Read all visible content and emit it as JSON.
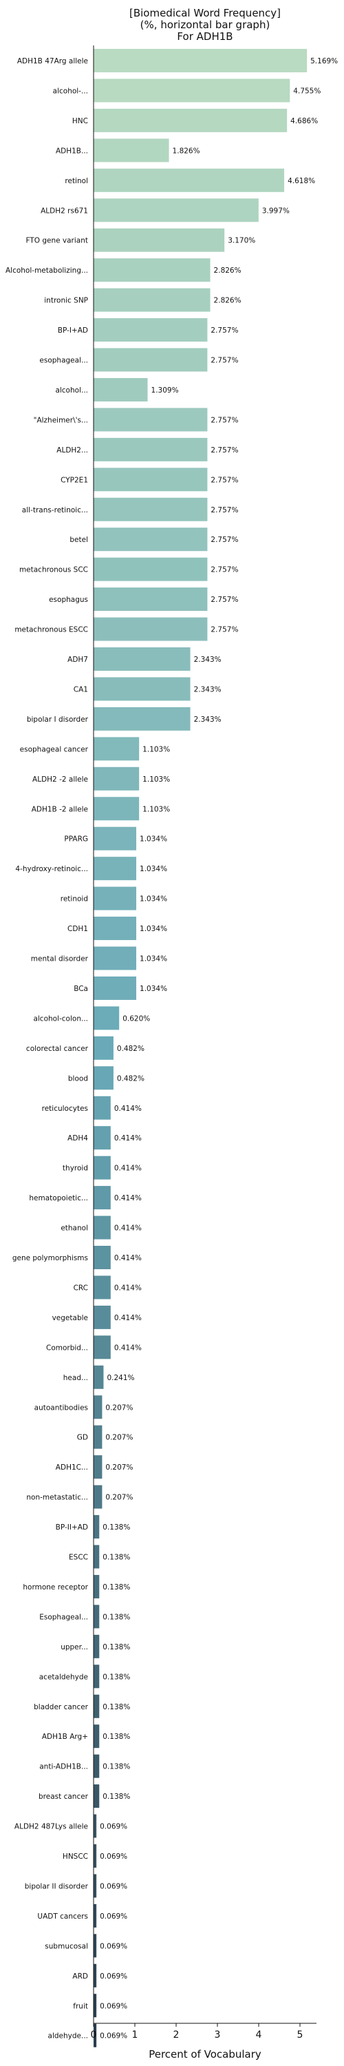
{
  "chart_data": {
    "type": "bar",
    "orientation": "horizontal",
    "title_lines": [
      "[Biomedical Word Frequency]",
      "(%, horizontal bar graph)",
      "For ADH1B"
    ],
    "xlabel": "Percent of Vocabulary",
    "ylabel": "",
    "xlim": [
      0,
      5.4
    ],
    "xticks": [
      0,
      1,
      2,
      3,
      4,
      5
    ],
    "grid": false,
    "legend": "none",
    "colors": {
      "start": "#b9dbc1",
      "mid": "#6aaab8",
      "end": "#2a3d4c"
    },
    "categories": [
      "ADH1B 47Arg allele",
      "alcohol-...",
      "HNC",
      "ADH1B...",
      "retinol",
      "ALDH2 rs671",
      "FTO gene variant",
      "Alcohol-metabolizing...",
      "intronic SNP",
      "BP-I+AD",
      "esophageal...",
      "alcohol...",
      "\"Alzheimer\\'s...",
      "ALDH2...",
      "CYP2E1",
      "all-trans-retinoic...",
      "betel",
      "metachronous SCC",
      "esophagus",
      "metachronous ESCC",
      "ADH7",
      "CA1",
      "bipolar I disorder",
      "esophageal cancer",
      "ALDH2 -2 allele",
      "ADH1B -2 allele",
      "PPARG",
      "4-hydroxy-retinoic...",
      "retinoid",
      "CDH1",
      "mental disorder",
      "BCa",
      "alcohol-colon...",
      "colorectal cancer",
      "blood",
      "reticulocytes",
      "ADH4",
      "thyroid",
      "hematopoietic...",
      "ethanol",
      "gene polymorphisms",
      "CRC",
      "vegetable",
      "Comorbid...",
      "head...",
      "autoantibodies",
      "GD",
      "ADH1C...",
      "non-metastatic...",
      "BP-II+AD",
      "ESCC",
      "hormone receptor",
      "Esophageal...",
      "upper...",
      "acetaldehyde",
      "bladder cancer",
      "ADH1B Arg+",
      "anti-ADH1B...",
      "breast cancer",
      "ALDH2 487Lys allele",
      "HNSCC",
      "bipolar II disorder",
      "UADT cancers",
      "submucosal",
      "ARD",
      "fruit",
      "aldehyde..."
    ],
    "values": [
      5.169,
      4.755,
      4.686,
      1.826,
      4.618,
      3.997,
      3.17,
      2.826,
      2.826,
      2.757,
      2.757,
      1.309,
      2.757,
      2.757,
      2.757,
      2.757,
      2.757,
      2.757,
      2.757,
      2.757,
      2.343,
      2.343,
      2.343,
      1.103,
      1.103,
      1.103,
      1.034,
      1.034,
      1.034,
      1.034,
      1.034,
      1.034,
      0.62,
      0.482,
      0.482,
      0.414,
      0.414,
      0.414,
      0.414,
      0.414,
      0.414,
      0.414,
      0.414,
      0.414,
      0.241,
      0.207,
      0.207,
      0.207,
      0.207,
      0.138,
      0.138,
      0.138,
      0.138,
      0.138,
      0.138,
      0.138,
      0.138,
      0.138,
      0.138,
      0.069,
      0.069,
      0.069,
      0.069,
      0.069,
      0.069,
      0.069,
      0.069
    ],
    "value_labels": [
      "5.169%",
      "4.755%",
      "4.686%",
      "1.826%",
      "4.618%",
      "3.997%",
      "3.170%",
      "2.826%",
      "2.826%",
      "2.757%",
      "2.757%",
      "1.309%",
      "2.757%",
      "2.757%",
      "2.757%",
      "2.757%",
      "2.757%",
      "2.757%",
      "2.757%",
      "2.757%",
      "2.343%",
      "2.343%",
      "2.343%",
      "1.103%",
      "1.103%",
      "1.103%",
      "1.034%",
      "1.034%",
      "1.034%",
      "1.034%",
      "1.034%",
      "1.034%",
      "0.620%",
      "0.482%",
      "0.482%",
      "0.414%",
      "0.414%",
      "0.414%",
      "0.414%",
      "0.414%",
      "0.414%",
      "0.414%",
      "0.414%",
      "0.414%",
      "0.241%",
      "0.207%",
      "0.207%",
      "0.207%",
      "0.207%",
      "0.138%",
      "0.138%",
      "0.138%",
      "0.138%",
      "0.138%",
      "0.138%",
      "0.138%",
      "0.138%",
      "0.138%",
      "0.138%",
      "0.069%",
      "0.069%",
      "0.069%",
      "0.069%",
      "0.069%",
      "0.069%",
      "0.069%",
      "0.069%"
    ]
  }
}
